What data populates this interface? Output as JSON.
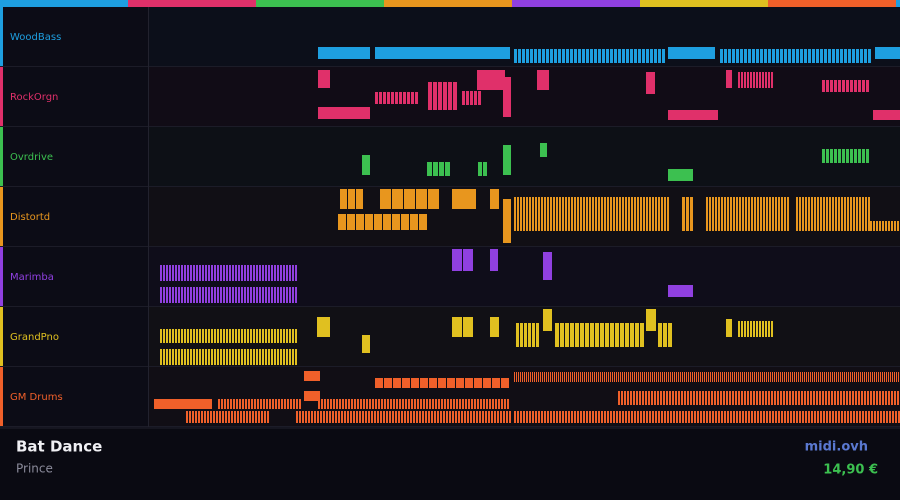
{
  "tracks": [
    {
      "name": "WoodBass",
      "color": "#1e9fe0"
    },
    {
      "name": "RockOrgn",
      "color": "#e0306a"
    },
    {
      "name": "Ovrdrive",
      "color": "#3cc050"
    },
    {
      "name": "Distortd",
      "color": "#e8961e"
    },
    {
      "name": "Marimba",
      "color": "#9040e0"
    },
    {
      "name": "GrandPno",
      "color": "#e0c020"
    },
    {
      "name": "GM Drums",
      "color": "#f0602a"
    }
  ],
  "song": {
    "title": "Bat Dance",
    "artist": "Prince"
  },
  "site": "midi.ovh",
  "price": "14,90 €"
}
